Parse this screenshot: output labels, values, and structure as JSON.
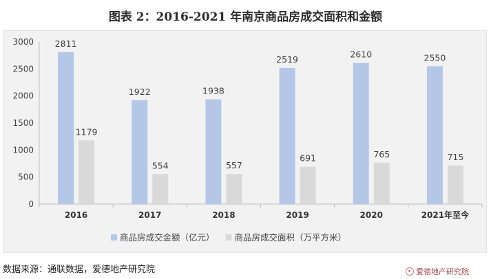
{
  "title": "图表 2：2016-2021 年南京商品房成交面积和金额",
  "source": "数据来源：通联数据，爱德地产研究院",
  "brand": "爱德地产研究院",
  "colors": {
    "series1": "#b4c7e7",
    "series2": "#d9d9d9",
    "axis": "#bfbfbf",
    "text": "#404040"
  },
  "chart_data": {
    "type": "bar",
    "categories": [
      "2016",
      "2017",
      "2018",
      "2019",
      "2020",
      "2021年至今"
    ],
    "series": [
      {
        "name": "商品房成交金额（亿元）",
        "values": [
          2811,
          1922,
          1938,
          2519,
          2610,
          2550
        ]
      },
      {
        "name": "商品房成交面积（万平方米）",
        "values": [
          1179,
          554,
          557,
          691,
          765,
          715
        ]
      }
    ],
    "ylim": [
      0,
      3000
    ],
    "yticks": [
      0,
      500,
      1000,
      1500,
      2000,
      2500,
      3000
    ],
    "legend_position": "bottom",
    "grid": false
  }
}
